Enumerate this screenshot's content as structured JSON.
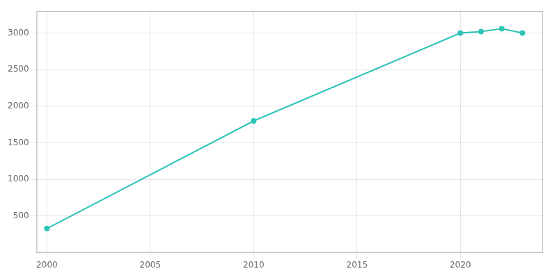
{
  "chart_data": {
    "type": "line",
    "x": [
      2000,
      2010,
      2020,
      2021,
      2022,
      2023
    ],
    "values": [
      330,
      1800,
      3000,
      3020,
      3060,
      3000
    ],
    "color": "#2ec4b6",
    "marker": "circle",
    "xlim": [
      1999.5,
      2024
    ],
    "xticks": [
      2000,
      2005,
      2010,
      2015,
      2020
    ],
    "ylim": [
      0,
      3300
    ],
    "yticks": [
      500,
      1000,
      1500,
      2000,
      2500,
      3000
    ],
    "grid": true
  }
}
